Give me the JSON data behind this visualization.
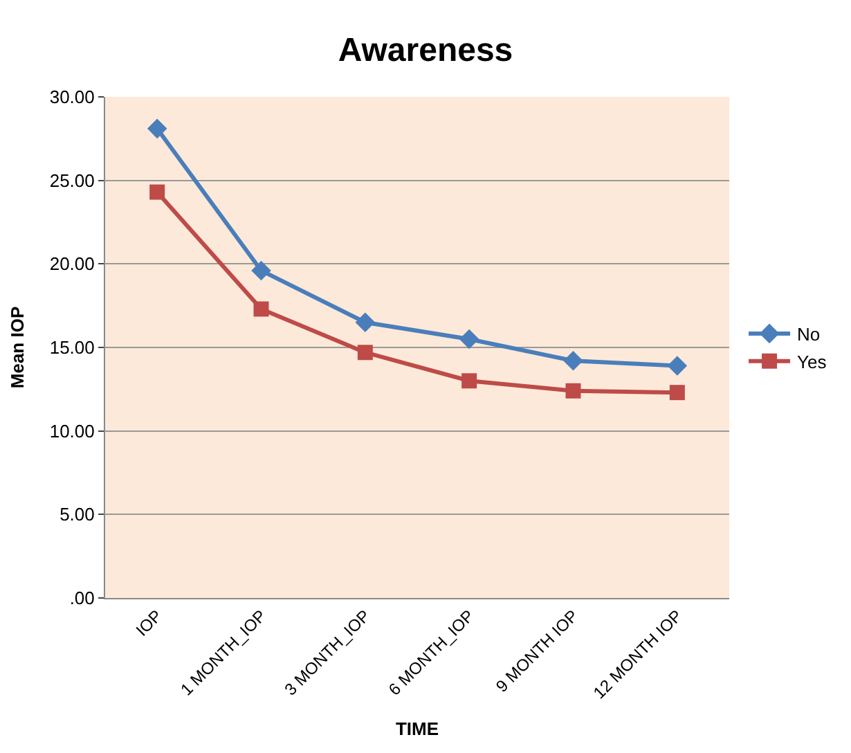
{
  "chart_data": {
    "type": "line",
    "title": "Awareness",
    "xlabel": "TIME",
    "ylabel": "Mean IOP",
    "categories": [
      "IOP",
      "1 MONTH_IOP",
      "3 MONTH_IOP",
      "6 MONTH_IOP",
      "9 MONTH IOP",
      "12 MONTH IOP"
    ],
    "series": [
      {
        "name": "No",
        "color": "#4a7ebb",
        "marker": "diamond",
        "values": [
          28.1,
          19.6,
          16.5,
          15.5,
          14.2,
          13.9
        ]
      },
      {
        "name": "Yes",
        "color": "#be4b48",
        "marker": "square",
        "values": [
          24.3,
          17.3,
          14.7,
          13.0,
          12.4,
          12.3
        ]
      }
    ],
    "ylim": [
      0,
      30
    ],
    "yticks": [
      {
        "value": 0,
        "label": ".00"
      },
      {
        "value": 5,
        "label": "5.00"
      },
      {
        "value": 10,
        "label": "10.00"
      },
      {
        "value": 15,
        "label": "15.00"
      },
      {
        "value": 20,
        "label": "20.00"
      },
      {
        "value": 25,
        "label": "25.00"
      },
      {
        "value": 30,
        "label": "30.00"
      }
    ],
    "grid": "y",
    "legend": "right",
    "line_style": "solid"
  }
}
